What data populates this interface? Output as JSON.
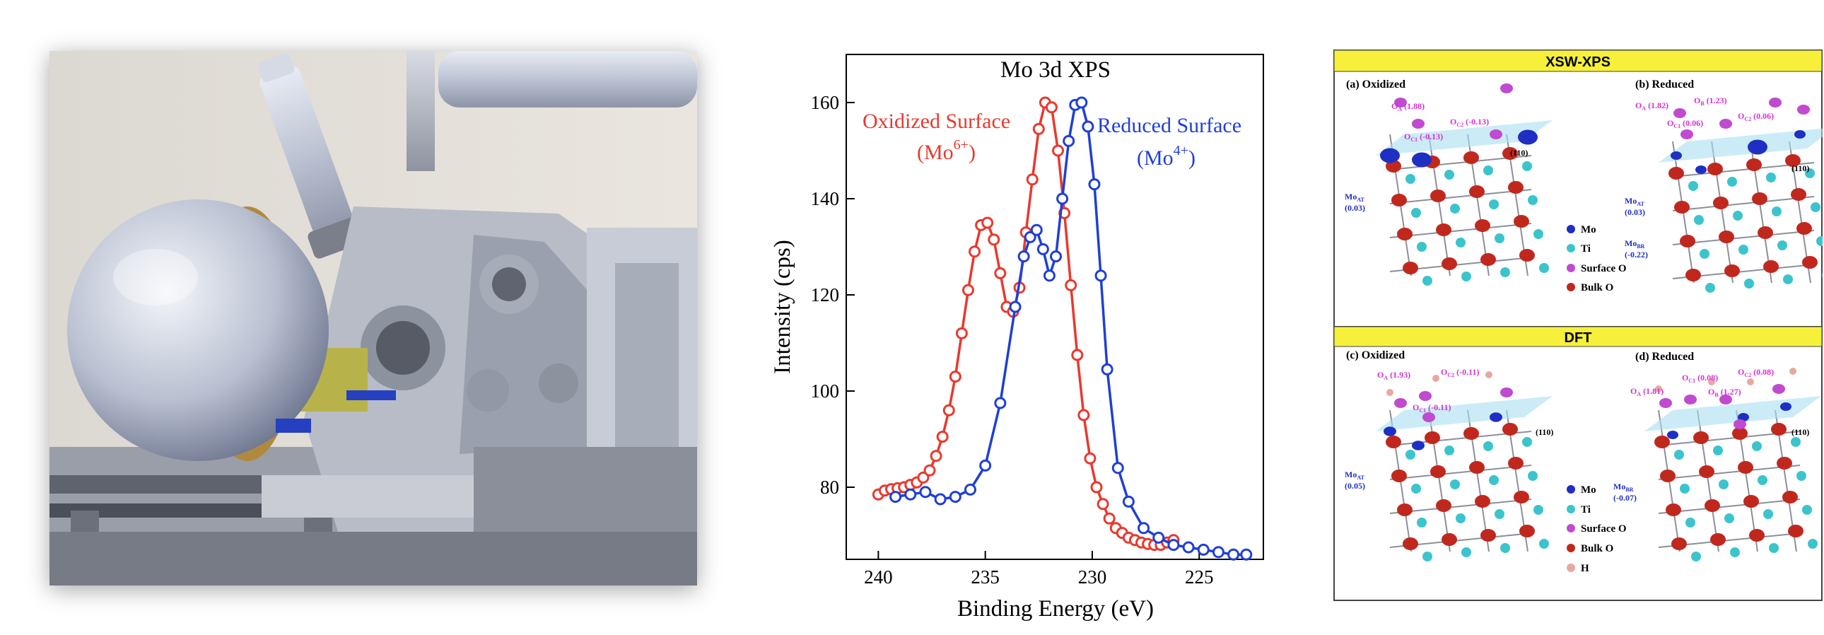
{
  "chart_data": {
    "type": "line",
    "title": "Mo 3d XPS",
    "xlabel": "Binding Energy (eV)",
    "ylabel": "Intensity (cps)",
    "xlim": [
      241.5,
      222
    ],
    "ylim": [
      65,
      170
    ],
    "xticks": [
      240,
      235,
      230,
      225
    ],
    "yticks": [
      80,
      100,
      120,
      140,
      160
    ],
    "series": [
      {
        "name": "Oxidized Surface",
        "label_line1": "Oxidized Surface",
        "label_ion": "(Mo",
        "label_charge": "6+",
        "label_close": ")",
        "color": "#e8392e",
        "x": [
          240.0,
          239.7,
          239.4,
          239.1,
          238.8,
          238.5,
          238.2,
          237.9,
          237.6,
          237.3,
          237.0,
          236.7,
          236.4,
          236.1,
          235.8,
          235.5,
          235.2,
          234.9,
          234.6,
          234.3,
          234.0,
          233.7,
          233.4,
          233.1,
          232.8,
          232.5,
          232.2,
          231.9,
          231.6,
          231.3,
          231.0,
          230.7,
          230.4,
          230.1,
          229.8,
          229.5,
          229.2,
          228.9,
          228.6,
          228.3,
          228.0,
          227.7,
          227.4,
          227.1,
          226.8,
          226.5,
          226.2
        ],
        "y": [
          78.5,
          79.3,
          79.6,
          79.8,
          80.0,
          80.5,
          81.0,
          82.0,
          83.5,
          86.5,
          90.5,
          96.0,
          103.0,
          112.0,
          121.0,
          129.0,
          134.5,
          135.0,
          131.5,
          124.5,
          117.5,
          116.5,
          121.5,
          133.0,
          144.0,
          154.5,
          160.0,
          159.0,
          150.0,
          137.0,
          122.0,
          107.5,
          95.0,
          86.0,
          80.0,
          76.5,
          73.5,
          71.5,
          70.5,
          69.5,
          69.0,
          68.5,
          68.2,
          68.0,
          68.0,
          68.5,
          69.0
        ]
      },
      {
        "name": "Reduced Surface",
        "label_line1": "Reduced Surface",
        "label_ion": "(Mo",
        "label_charge": "4+",
        "label_close": ")",
        "color": "#1f3fd6",
        "x": [
          239.2,
          238.5,
          237.8,
          237.1,
          236.4,
          235.7,
          235.0,
          234.3,
          233.6,
          233.2,
          232.9,
          232.6,
          232.3,
          232.0,
          231.7,
          231.4,
          231.1,
          230.8,
          230.5,
          230.2,
          229.9,
          229.6,
          229.3,
          228.8,
          228.3,
          227.6,
          226.9,
          226.2,
          225.5,
          224.8,
          224.1,
          223.4,
          222.8
        ],
        "y": [
          78.0,
          78.5,
          79.0,
          77.5,
          78.0,
          79.5,
          84.5,
          97.5,
          117.5,
          128.0,
          132.0,
          133.5,
          129.5,
          124.0,
          128.0,
          140.0,
          152.0,
          159.5,
          160.0,
          155.0,
          143.0,
          124.0,
          104.5,
          84.0,
          77.0,
          71.5,
          69.5,
          68.0,
          67.5,
          67.0,
          66.5,
          66.0,
          66.0
        ]
      }
    ]
  },
  "panel": {
    "xsw_title": "XSW-XPS",
    "dft_title": "DFT",
    "a_label": "(a) Oxidized",
    "b_label": "(b) Reduced",
    "c_label": "(c) Oxidized",
    "d_label": "(d) Reduced",
    "plane_label": "(110)",
    "legend_top": [
      "Mo",
      "Ti",
      "Surface O",
      "Bulk O"
    ],
    "legend_bottom": [
      "Mo",
      "Ti",
      "Surface O",
      "Bulk O",
      "H"
    ],
    "a_ann": {
      "oa": "O",
      "oa_sub": "A",
      "oa_val": " (1.88)",
      "oc1": "O",
      "oc1_sub": "C1",
      "oc1_val": " (-0.13)",
      "oc2": "O",
      "oc2_sub": "C2",
      "oc2_val": " (-0.13)",
      "mo": "Mo",
      "mo_sub": "AT",
      "mo_val": "(0.03)"
    },
    "b_ann": {
      "oa": "O",
      "oa_sub": "A",
      "oa_val": " (1.82)",
      "ob": "O",
      "ob_sub": "B",
      "ob_val": " (1.23)",
      "oc1": "O",
      "oc1_sub": "C1",
      "oc1_val": " (0.06)",
      "oc2": "O",
      "oc2_sub": "C2",
      "oc2_val": " (0.06)",
      "mo": "Mo",
      "mo_sub": "AT",
      "mo_val": "(0.03)",
      "mo2": "Mo",
      "mo2_sub": "BR",
      "mo2_val": "(-0.22)"
    },
    "c_ann": {
      "oa": "O",
      "oa_sub": "A",
      "oa_val": " (1.93)",
      "oc1": "O",
      "oc1_sub": "C1",
      "oc1_val": " (-0.11)",
      "oc2": "O",
      "oc2_sub": "C2",
      "oc2_val": " (-0.11)",
      "mo": "Mo",
      "mo_sub": "AT",
      "mo_val": "(0.05)"
    },
    "d_ann": {
      "oa": "O",
      "oa_sub": "A",
      "oa_val": " (1.81)",
      "ob": "O",
      "ob_sub": "B",
      "ob_val": " (1.27)",
      "oc1": "O",
      "oc1_sub": "C1",
      "oc1_val": " (0.08)",
      "oc2": "O",
      "oc2_sub": "C2",
      "oc2_val": " (0.08)",
      "mo": "Mo",
      "mo_sub": "BR",
      "mo_val": "(-0.07)"
    },
    "colors": {
      "mo": "#1f2fc4",
      "ti": "#3cc4cc",
      "surface_o": "#c04ad0",
      "bulk_o": "#c0281e",
      "h": "#e8a8a0",
      "header": "#f6f03a",
      "plane": "#a8e0f0",
      "ann_o": "#d62fd6",
      "ann_mo": "#1f2fc4"
    }
  }
}
